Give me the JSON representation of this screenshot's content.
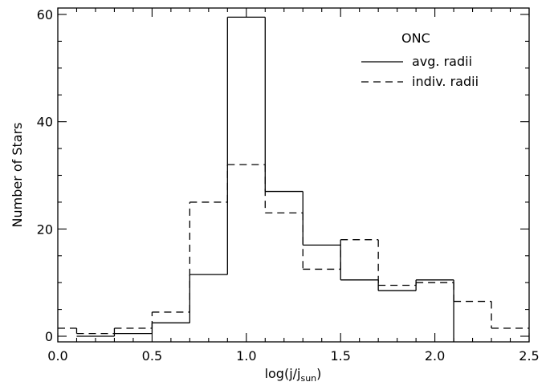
{
  "chart_data": {
    "type": "step",
    "title": "",
    "xlabel_main": "log(j/j",
    "xlabel_sub": "sun",
    "xlabel_close": ")",
    "ylabel": "Number of Stars",
    "xlim": [
      0.0,
      2.5
    ],
    "ylim": [
      0,
      60
    ],
    "xticks": [
      {
        "value": 0.0,
        "label": "0.0"
      },
      {
        "value": 0.5,
        "label": "0.5"
      },
      {
        "value": 1.0,
        "label": "1.0"
      },
      {
        "value": 1.5,
        "label": "1.5"
      },
      {
        "value": 2.0,
        "label": "2.0"
      },
      {
        "value": 2.5,
        "label": "2.5"
      }
    ],
    "yticks": [
      {
        "value": 0,
        "label": "0"
      },
      {
        "value": 20,
        "label": "20"
      },
      {
        "value": 40,
        "label": "40"
      },
      {
        "value": 60,
        "label": "60"
      }
    ],
    "legend": {
      "title": "ONC",
      "placement": "top-right"
    },
    "series": [
      {
        "name": "avg. radii",
        "style": "solid",
        "color": "#000000",
        "bin_edges": [
          0.1,
          0.3,
          0.5,
          0.7,
          0.9,
          1.1,
          1.3,
          1.5,
          1.7,
          1.9,
          2.1
        ],
        "counts": [
          0,
          0.5,
          2.5,
          11.5,
          59.5,
          27,
          17,
          10.5,
          8.5,
          10.5
        ]
      },
      {
        "name": "indiv. radii",
        "style": "dashed",
        "color": "#000000",
        "bin_edges": [
          -0.1,
          0.1,
          0.3,
          0.5,
          0.7,
          0.9,
          1.1,
          1.3,
          1.5,
          1.7,
          1.9,
          2.1,
          2.3,
          2.5
        ],
        "counts": [
          1.5,
          0.5,
          1.5,
          4.5,
          25,
          32,
          23,
          12.5,
          18,
          9.5,
          10,
          6.5,
          1.5
        ]
      }
    ]
  }
}
